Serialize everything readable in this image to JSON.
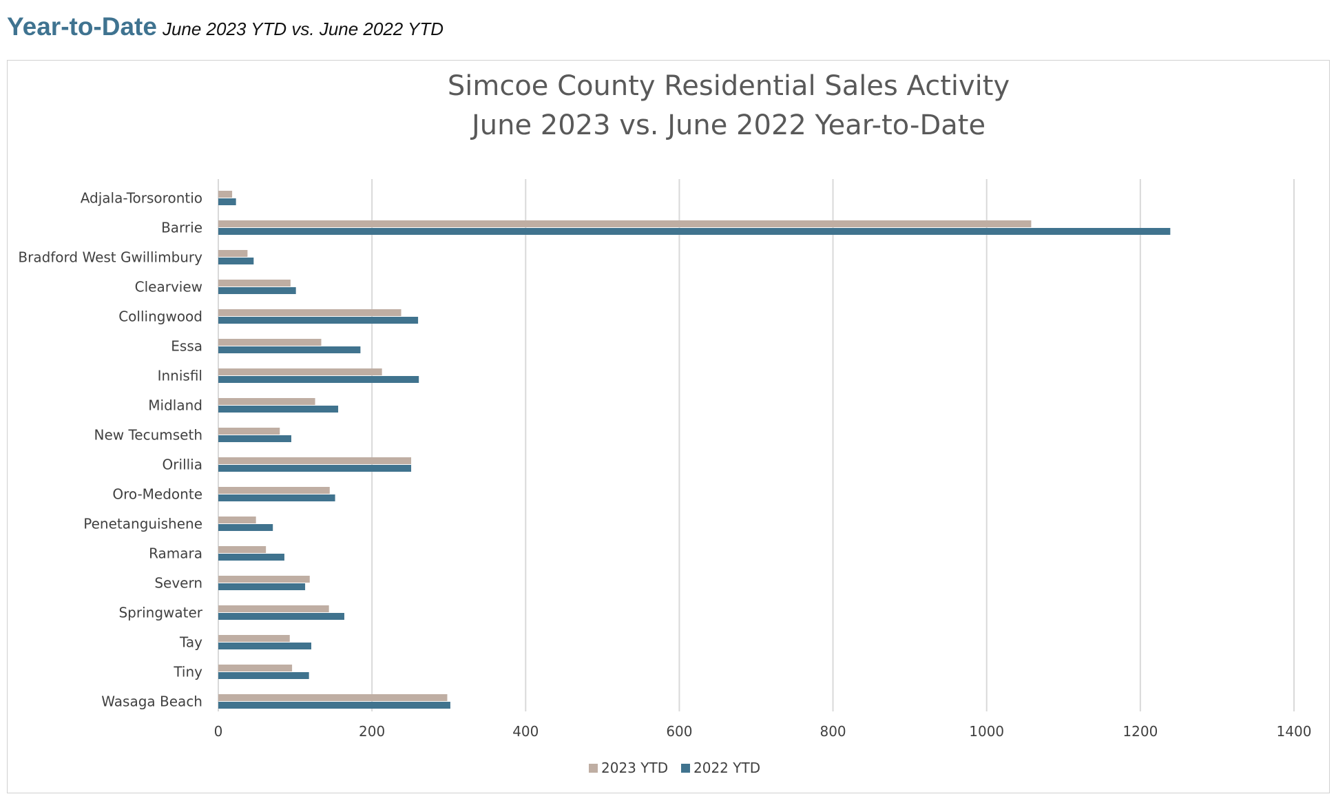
{
  "header": {
    "title": "Year-to-Date",
    "subtitle": "June 2023 YTD vs. June 2022 YTD"
  },
  "chart_data": {
    "type": "bar",
    "orientation": "horizontal",
    "title_lines": [
      "Simcoe County Residential Sales Activity",
      "June 2023 vs. June 2022 Year-to-Date"
    ],
    "categories": [
      "Adjala-Torsorontio",
      "Barrie",
      "Bradford West Gwillimbury",
      "Clearview",
      "Collingwood",
      "Essa",
      "Innisfil",
      "Midland",
      "New Tecumseth",
      "Orillia",
      "Oro-Medonte",
      "Penetanguishene",
      "Ramara",
      "Severn",
      "Springwater",
      "Tay",
      "Tiny",
      "Wasaga Beach"
    ],
    "series": [
      {
        "name": "2023 YTD",
        "color": "#bfaea3",
        "values": [
          18,
          1058,
          38,
          94,
          238,
          134,
          213,
          126,
          80,
          251,
          145,
          49,
          62,
          119,
          144,
          93,
          96,
          298
        ]
      },
      {
        "name": "2022 YTD",
        "color": "#40738e",
        "values": [
          23,
          1239,
          46,
          101,
          260,
          185,
          261,
          156,
          95,
          251,
          152,
          71,
          86,
          113,
          164,
          121,
          118,
          302
        ]
      }
    ],
    "x_ticks": [
      "0",
      "200",
      "400",
      "600",
      "800",
      "1000",
      "1200",
      "1400"
    ],
    "xlim": [
      0,
      1400
    ],
    "grid": "vertical",
    "gridline_color": "#d9d9d9",
    "legend_position": "bottom"
  }
}
